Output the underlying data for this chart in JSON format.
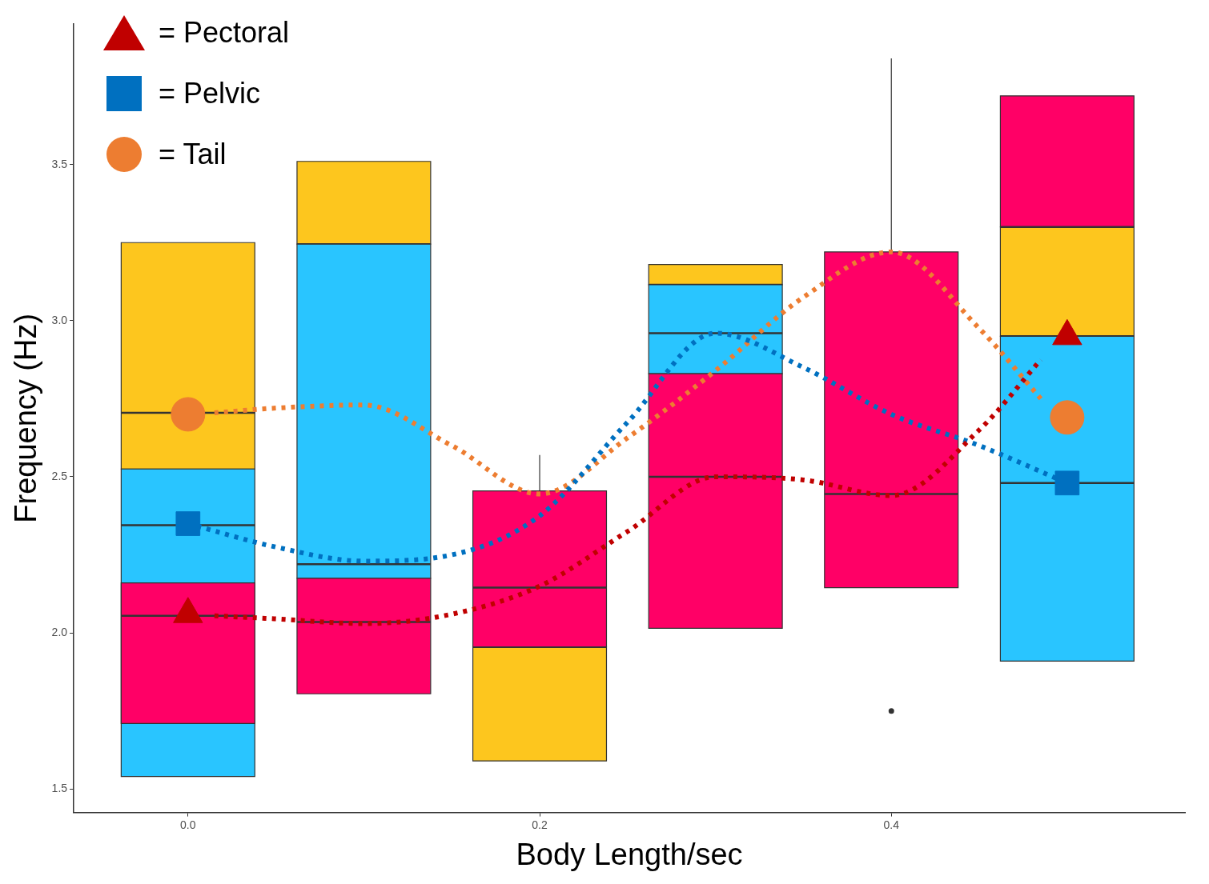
{
  "chart_data": {
    "type": "box",
    "xlabel": "Body Length/sec",
    "ylabel": "Frequency (Hz)",
    "x": [
      0,
      0.1,
      0.2,
      0.3,
      0.4,
      0.5
    ],
    "xlim": [
      -0.065,
      0.567
    ],
    "xticks": [
      {
        "value": 0,
        "label": "0.0"
      },
      {
        "value": 0.2,
        "label": "0.2"
      },
      {
        "value": 0.4,
        "label": "0.4"
      }
    ],
    "ylim": [
      1.425,
      3.95
    ],
    "yticks": [
      {
        "value": 1.5,
        "label": "1.5"
      },
      {
        "value": 2,
        "label": "2.0"
      },
      {
        "value": 2.5,
        "label": "2.5"
      },
      {
        "value": 3,
        "label": "3.0"
      },
      {
        "value": 3.5,
        "label": "3.5"
      }
    ],
    "grid": false,
    "legend": "top left",
    "series": [
      {
        "color": "#fdc61e",
        "boxes": [
          {
            "low": 2.525,
            "q1": 2.525,
            "median": 2.705,
            "q3": 3.25,
            "high": 3.25
          },
          {
            "low": 3.245,
            "q1": 3.245,
            "median": 3.245,
            "q3": 3.51,
            "high": 3.51
          },
          {
            "low": 1.59,
            "q1": 1.59,
            "median": 1.955,
            "q3": 1.955,
            "high": 1.955
          },
          {
            "low": 3.115,
            "q1": 3.115,
            "median": 3.115,
            "q3": 3.18,
            "high": 3.18
          },
          null,
          {
            "low": 2.95,
            "q1": 2.95,
            "median": 2.95,
            "q3": 3.3,
            "high": 3.3
          }
        ]
      },
      {
        "color": "#29c5ff",
        "boxes": [
          {
            "low": 1.54,
            "q1": 1.54,
            "median": 2.345,
            "q3": 2.525,
            "high": 2.525
          },
          {
            "low": 2.175,
            "q1": 2.175,
            "median": 2.22,
            "q3": 3.245,
            "high": 3.245
          },
          null,
          {
            "low": 2.83,
            "q1": 2.83,
            "median": 2.96,
            "q3": 3.115,
            "high": 3.115
          },
          null,
          {
            "low": 1.91,
            "q1": 1.91,
            "median": 2.48,
            "q3": 2.95,
            "high": 2.95
          }
        ]
      },
      {
        "color": "#ff0066",
        "boxes": [
          {
            "low": 1.71,
            "q1": 1.71,
            "median": 2.055,
            "q3": 2.16,
            "high": 2.16
          },
          {
            "low": 1.805,
            "q1": 1.805,
            "median": 2.035,
            "q3": 2.175,
            "high": 2.175
          },
          {
            "low": 1.955,
            "q1": 1.955,
            "median": 2.145,
            "q3": 2.455,
            "high": 2.57
          },
          {
            "low": 2.015,
            "q1": 2.015,
            "median": 2.5,
            "q3": 2.83,
            "high": 2.83
          },
          {
            "low": 2.145,
            "q1": 2.145,
            "median": 2.445,
            "q3": 3.22,
            "high": 3.84,
            "outliers": [
              1.75
            ]
          },
          {
            "low": 3.3,
            "q1": 3.3,
            "median": 3.3,
            "q3": 3.72,
            "high": 3.72
          }
        ]
      },
      {
        "type": "line",
        "x": [
          0.015,
          0.05,
          0.1,
          0.15,
          0.2,
          0.25,
          0.3,
          0.35,
          0.4,
          0.45,
          0.485
        ],
        "values": [
          2.705,
          2.72,
          2.73,
          2.6,
          2.445,
          2.625,
          2.84,
          3.075,
          3.22,
          2.975,
          2.75
        ],
        "color": "#ed7d31",
        "line_style": "dotted",
        "marker": "none"
      },
      {
        "type": "line",
        "x": [
          0,
          0.05,
          0.1,
          0.15,
          0.2,
          0.25,
          0.3,
          0.35,
          0.4,
          0.45,
          0.5
        ],
        "values": [
          2.35,
          2.275,
          2.23,
          2.25,
          2.375,
          2.675,
          2.96,
          2.85,
          2.7,
          2.6,
          2.48
        ],
        "color": "#0070c0",
        "line_style": "dotted",
        "marker": "none"
      },
      {
        "type": "line",
        "x": [
          0.015,
          0.05,
          0.1,
          0.15,
          0.2,
          0.25,
          0.3,
          0.35,
          0.4,
          0.45,
          0.485
        ],
        "values": [
          2.055,
          2.045,
          2.03,
          2.06,
          2.15,
          2.325,
          2.5,
          2.49,
          2.44,
          2.65,
          2.875
        ],
        "color": "#c00000",
        "line_style": "dotted",
        "marker": "none"
      },
      {
        "type": "scatter",
        "name": "= Pectoral",
        "x": [
          0,
          0.5
        ],
        "values": [
          2.06,
          2.95
        ],
        "color": "#c00000",
        "marker": "triangle"
      },
      {
        "type": "scatter",
        "name": "= Pelvic",
        "x": [
          0,
          0.5
        ],
        "values": [
          2.35,
          2.48
        ],
        "color": "#0070c0",
        "marker": "square"
      },
      {
        "type": "scatter",
        "name": "= Tail",
        "x": [
          0,
          0.5
        ],
        "values": [
          2.7,
          2.69
        ],
        "color": "#ed7d31",
        "marker": "circle"
      }
    ]
  }
}
